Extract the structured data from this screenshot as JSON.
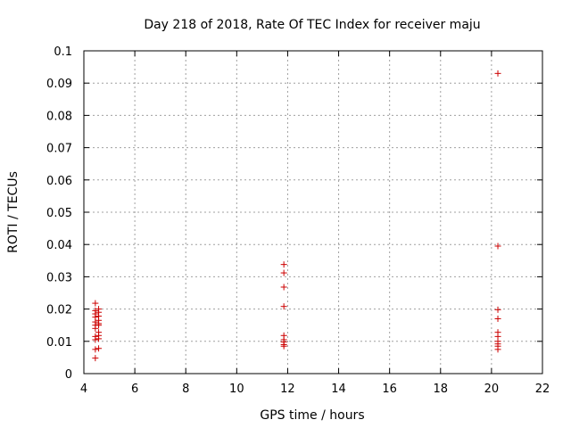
{
  "chart_data": {
    "type": "scatter",
    "title": "Day 218 of 2018, Rate Of TEC Index for receiver maju",
    "xlabel": "GPS time / hours",
    "ylabel": "ROTI / TECUs",
    "xlim": [
      4,
      22
    ],
    "ylim": [
      0,
      0.1
    ],
    "xticks": [
      4,
      6,
      8,
      10,
      12,
      14,
      16,
      18,
      20,
      22
    ],
    "yticks": [
      0,
      0.01,
      0.02,
      0.03,
      0.04,
      0.05,
      0.06,
      0.07,
      0.08,
      0.09,
      0.1
    ],
    "xtick_labels": [
      "4",
      "6",
      "8",
      "10",
      "12",
      "14",
      "16",
      "18",
      "20",
      "22"
    ],
    "ytick_labels": [
      "0",
      "0.01",
      "0.02",
      "0.03",
      "0.04",
      "0.05",
      "0.06",
      "0.07",
      "0.08",
      "0.09",
      "0.1"
    ],
    "grid": true,
    "marker": "+",
    "color": "#cc0000",
    "series": [
      {
        "name": "maju",
        "points": [
          [
            4.45,
            0.0218
          ],
          [
            4.45,
            0.0195
          ],
          [
            4.45,
            0.0185
          ],
          [
            4.45,
            0.0175
          ],
          [
            4.45,
            0.016
          ],
          [
            4.45,
            0.015
          ],
          [
            4.45,
            0.014
          ],
          [
            4.45,
            0.0115
          ],
          [
            4.45,
            0.0105
          ],
          [
            4.45,
            0.0075
          ],
          [
            4.45,
            0.0048
          ],
          [
            4.58,
            0.02
          ],
          [
            4.58,
            0.019
          ],
          [
            4.58,
            0.0178
          ],
          [
            4.58,
            0.0165
          ],
          [
            4.58,
            0.0155
          ],
          [
            4.58,
            0.015
          ],
          [
            4.58,
            0.0128
          ],
          [
            4.58,
            0.0118
          ],
          [
            4.58,
            0.0108
          ],
          [
            4.58,
            0.0078
          ],
          [
            11.85,
            0.0338
          ],
          [
            11.85,
            0.0312
          ],
          [
            11.85,
            0.0268
          ],
          [
            11.85,
            0.0208
          ],
          [
            11.85,
            0.0118
          ],
          [
            11.85,
            0.0105
          ],
          [
            11.85,
            0.0098
          ],
          [
            11.85,
            0.009
          ],
          [
            11.85,
            0.0085
          ],
          [
            20.25,
            0.093
          ],
          [
            20.25,
            0.0395
          ],
          [
            20.25,
            0.0198
          ],
          [
            20.25,
            0.017
          ],
          [
            20.25,
            0.0128
          ],
          [
            20.25,
            0.0115
          ],
          [
            20.25,
            0.01
          ],
          [
            20.25,
            0.0092
          ],
          [
            20.25,
            0.0085
          ],
          [
            20.25,
            0.0075
          ]
        ]
      }
    ]
  }
}
